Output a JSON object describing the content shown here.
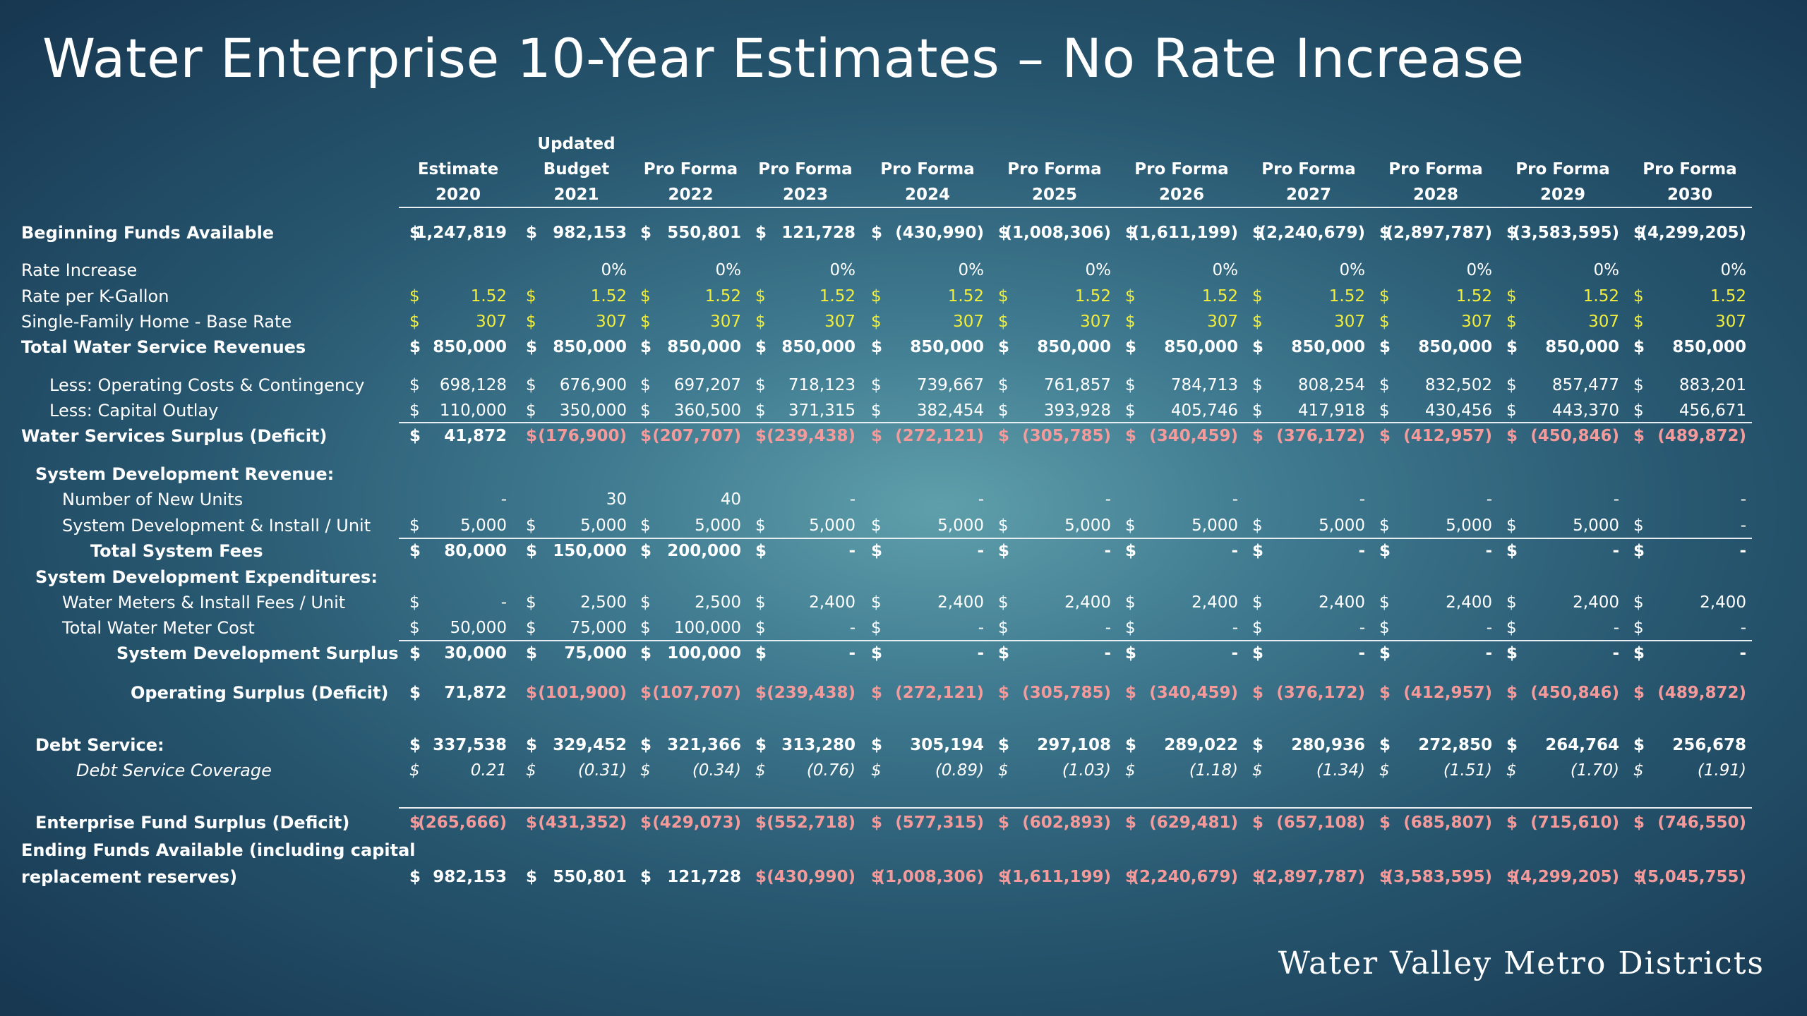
{
  "title": "Water Enterprise 10-Year Estimates – No Rate Increase",
  "logo_text": "Water Valley Metro Districts",
  "columns": [
    {
      "lines": [
        "",
        "Estimate",
        "2020"
      ]
    },
    {
      "lines": [
        "Updated",
        "Budget",
        "2021"
      ]
    },
    {
      "lines": [
        "",
        "Pro Forma",
        "2022"
      ]
    },
    {
      "lines": [
        "",
        "Pro Forma",
        "2023"
      ]
    },
    {
      "lines": [
        "",
        "Pro Forma",
        "2024"
      ]
    },
    {
      "lines": [
        "",
        "Pro Forma",
        "2025"
      ]
    },
    {
      "lines": [
        "",
        "Pro Forma",
        "2026"
      ]
    },
    {
      "lines": [
        "",
        "Pro Forma",
        "2027"
      ]
    },
    {
      "lines": [
        "",
        "Pro Forma",
        "2028"
      ]
    },
    {
      "lines": [
        "",
        "Pro Forma",
        "2029"
      ]
    },
    {
      "lines": [
        "",
        "Pro Forma",
        "2030"
      ]
    }
  ],
  "colors": {
    "default": "#ffffff",
    "highlight": "#f2ee3a",
    "deficit": "#f49a9a"
  },
  "rows": [
    {
      "label": "Beginning Funds Available",
      "style": "bold",
      "indent": 0,
      "dollar": [
        true,
        true,
        true,
        true,
        true,
        true,
        true,
        true,
        true,
        true,
        true
      ],
      "values": [
        "1,247,819",
        "982,153",
        "550,801",
        "121,728",
        "(430,990)",
        "(1,008,306)",
        "(1,611,199)",
        "(2,240,679)",
        "(2,897,787)",
        "(3,583,595)",
        "(4,299,205)"
      ]
    },
    {
      "label": "Rate Increase",
      "style": "normal",
      "indent": 0,
      "dollar": [
        false,
        false,
        false,
        false,
        false,
        false,
        false,
        false,
        false,
        false,
        false
      ],
      "values": [
        "",
        "0%",
        "0%",
        "0%",
        "0%",
        "0%",
        "0%",
        "0%",
        "0%",
        "0%",
        "0%"
      ]
    },
    {
      "label": "Rate per K-Gallon",
      "style": "normal",
      "indent": 0,
      "color": "highlight",
      "dollar": [
        true,
        true,
        true,
        true,
        true,
        true,
        true,
        true,
        true,
        true,
        true
      ],
      "values": [
        "1.52",
        "1.52",
        "1.52",
        "1.52",
        "1.52",
        "1.52",
        "1.52",
        "1.52",
        "1.52",
        "1.52",
        "1.52"
      ]
    },
    {
      "label": "Single-Family Home - Base Rate",
      "style": "normal",
      "indent": 0,
      "color": "highlight",
      "dollar": [
        true,
        true,
        true,
        true,
        true,
        true,
        true,
        true,
        true,
        true,
        true
      ],
      "values": [
        "307",
        "307",
        "307",
        "307",
        "307",
        "307",
        "307",
        "307",
        "307",
        "307",
        "307"
      ]
    },
    {
      "label": "Total Water Service Revenues",
      "style": "bold",
      "indent": 0,
      "dollar": [
        true,
        true,
        true,
        true,
        true,
        true,
        true,
        true,
        true,
        true,
        true
      ],
      "values": [
        "850,000",
        "850,000",
        "850,000",
        "850,000",
        "850,000",
        "850,000",
        "850,000",
        "850,000",
        "850,000",
        "850,000",
        "850,000"
      ]
    },
    {
      "label": "Less: Operating Costs & Contingency",
      "style": "normal",
      "indent": 40,
      "dollar": [
        true,
        true,
        true,
        true,
        true,
        true,
        true,
        true,
        true,
        true,
        true
      ],
      "values": [
        "698,128",
        "676,900",
        "697,207",
        "718,123",
        "739,667",
        "761,857",
        "784,713",
        "808,254",
        "832,502",
        "857,477",
        "883,201"
      ]
    },
    {
      "label": "Less: Capital Outlay",
      "style": "normal",
      "indent": 40,
      "dollar": [
        true,
        true,
        true,
        true,
        true,
        true,
        true,
        true,
        true,
        true,
        true
      ],
      "values": [
        "110,000",
        "350,000",
        "360,500",
        "371,315",
        "382,454",
        "393,928",
        "405,746",
        "417,918",
        "430,456",
        "443,370",
        "456,671"
      ]
    },
    {
      "label": "Water Services Surplus (Deficit)",
      "style": "bold",
      "indent": 0,
      "colors": [
        "default",
        "deficit",
        "deficit",
        "deficit",
        "deficit",
        "deficit",
        "deficit",
        "deficit",
        "deficit",
        "deficit",
        "deficit"
      ],
      "dollar": [
        true,
        true,
        true,
        true,
        true,
        true,
        true,
        true,
        true,
        true,
        true
      ],
      "values": [
        "41,872",
        "(176,900)",
        "(207,707)",
        "(239,438)",
        "(272,121)",
        "(305,785)",
        "(340,459)",
        "(376,172)",
        "(412,957)",
        "(450,846)",
        "(489,872)"
      ]
    },
    {
      "label": "System Development Revenue:",
      "style": "bold",
      "indent": 20,
      "dollar": [],
      "values": []
    },
    {
      "label": "Number of New Units",
      "style": "normal",
      "indent": 58,
      "dollar": [
        false,
        false,
        false,
        false,
        false,
        false,
        false,
        false,
        false,
        false,
        false
      ],
      "values": [
        "-",
        "30",
        "40",
        "-",
        "-",
        "-",
        "-",
        "-",
        "-",
        "-",
        "-"
      ]
    },
    {
      "label": "System Development & Install / Unit",
      "style": "normal",
      "indent": 58,
      "dollar": [
        true,
        true,
        true,
        true,
        true,
        true,
        true,
        true,
        true,
        true,
        true
      ],
      "values": [
        "5,000",
        "5,000",
        "5,000",
        "5,000",
        "5,000",
        "5,000",
        "5,000",
        "5,000",
        "5,000",
        "5,000",
        "-"
      ]
    },
    {
      "label": "Total System Fees",
      "style": "bold",
      "indent": 98,
      "dollar": [
        true,
        true,
        true,
        true,
        true,
        true,
        true,
        true,
        true,
        true,
        true
      ],
      "values": [
        "80,000",
        "150,000",
        "200,000",
        "-",
        "-",
        "-",
        "-",
        "-",
        "-",
        "-",
        "-"
      ]
    },
    {
      "label": "System Development Expenditures:",
      "style": "bold",
      "indent": 20,
      "dollar": [],
      "values": []
    },
    {
      "label": "Water Meters & Install Fees / Unit",
      "style": "normal",
      "indent": 58,
      "dollar": [
        true,
        true,
        true,
        true,
        true,
        true,
        true,
        true,
        true,
        true,
        true
      ],
      "values": [
        "-",
        "2,500",
        "2,500",
        "2,400",
        "2,400",
        "2,400",
        "2,400",
        "2,400",
        "2,400",
        "2,400",
        "2,400"
      ]
    },
    {
      "label": "Total Water Meter Cost",
      "style": "normal",
      "indent": 58,
      "dollar": [
        true,
        true,
        true,
        true,
        true,
        true,
        true,
        true,
        true,
        true,
        true
      ],
      "values": [
        "50,000",
        "75,000",
        "100,000",
        "-",
        "-",
        "-",
        "-",
        "-",
        "-",
        "-",
        "-"
      ]
    },
    {
      "label": "System Development Surplus",
      "style": "bold",
      "indent": 135,
      "dollar": [
        true,
        true,
        true,
        true,
        true,
        true,
        true,
        true,
        true,
        true,
        true
      ],
      "values": [
        "30,000",
        "75,000",
        "100,000",
        "-",
        "-",
        "-",
        "-",
        "-",
        "-",
        "-",
        "-"
      ]
    },
    {
      "label": "Operating Surplus (Deficit)",
      "style": "bold",
      "indent": 155,
      "colors": [
        "default",
        "deficit",
        "deficit",
        "deficit",
        "deficit",
        "deficit",
        "deficit",
        "deficit",
        "deficit",
        "deficit",
        "deficit"
      ],
      "dollar": [
        true,
        true,
        true,
        true,
        true,
        true,
        true,
        true,
        true,
        true,
        true
      ],
      "values": [
        "71,872",
        "(101,900)",
        "(107,707)",
        "(239,438)",
        "(272,121)",
        "(305,785)",
        "(340,459)",
        "(376,172)",
        "(412,957)",
        "(450,846)",
        "(489,872)"
      ]
    },
    {
      "label": "Debt Service:",
      "style": "bold",
      "indent": 20,
      "dollar": [
        true,
        true,
        true,
        true,
        true,
        true,
        true,
        true,
        true,
        true,
        true
      ],
      "values": [
        "337,538",
        "329,452",
        "321,366",
        "313,280",
        "305,194",
        "297,108",
        "289,022",
        "280,936",
        "272,850",
        "264,764",
        "256,678"
      ]
    },
    {
      "label": "Debt Service Coverage",
      "style": "italic",
      "indent": 78,
      "dollar": [
        true,
        true,
        true,
        true,
        true,
        true,
        true,
        true,
        true,
        true,
        true
      ],
      "values": [
        "0.21",
        "(0.31)",
        "(0.34)",
        "(0.76)",
        "(0.89)",
        "(1.03)",
        "(1.18)",
        "(1.34)",
        "(1.51)",
        "(1.70)",
        "(1.91)"
      ]
    },
    {
      "label": "Enterprise Fund Surplus (Deficit)",
      "style": "bold",
      "indent": 20,
      "color": "deficit",
      "dollar": [
        true,
        true,
        true,
        true,
        true,
        true,
        true,
        true,
        true,
        true,
        true
      ],
      "values": [
        "(265,666)",
        "(431,352)",
        "(429,073)",
        "(552,718)",
        "(577,315)",
        "(602,893)",
        "(629,481)",
        "(657,108)",
        "(685,807)",
        "(715,610)",
        "(746,550)"
      ]
    },
    {
      "label": "Ending Funds Available (including capital",
      "label2": "replacement reserves)",
      "style": "bold",
      "indent": 0,
      "colors": [
        "default",
        "default",
        "default",
        "deficit",
        "deficit",
        "deficit",
        "deficit",
        "deficit",
        "deficit",
        "deficit",
        "deficit"
      ],
      "dollar": [
        true,
        true,
        true,
        true,
        true,
        true,
        true,
        true,
        true,
        true,
        true
      ],
      "values": [
        "982,153",
        "550,801",
        "121,728",
        "(430,990)",
        "(1,008,306)",
        "(1,611,199)",
        "(2,240,679)",
        "(2,897,787)",
        "(3,583,595)",
        "(4,299,205)",
        "(5,045,755)"
      ]
    }
  ]
}
